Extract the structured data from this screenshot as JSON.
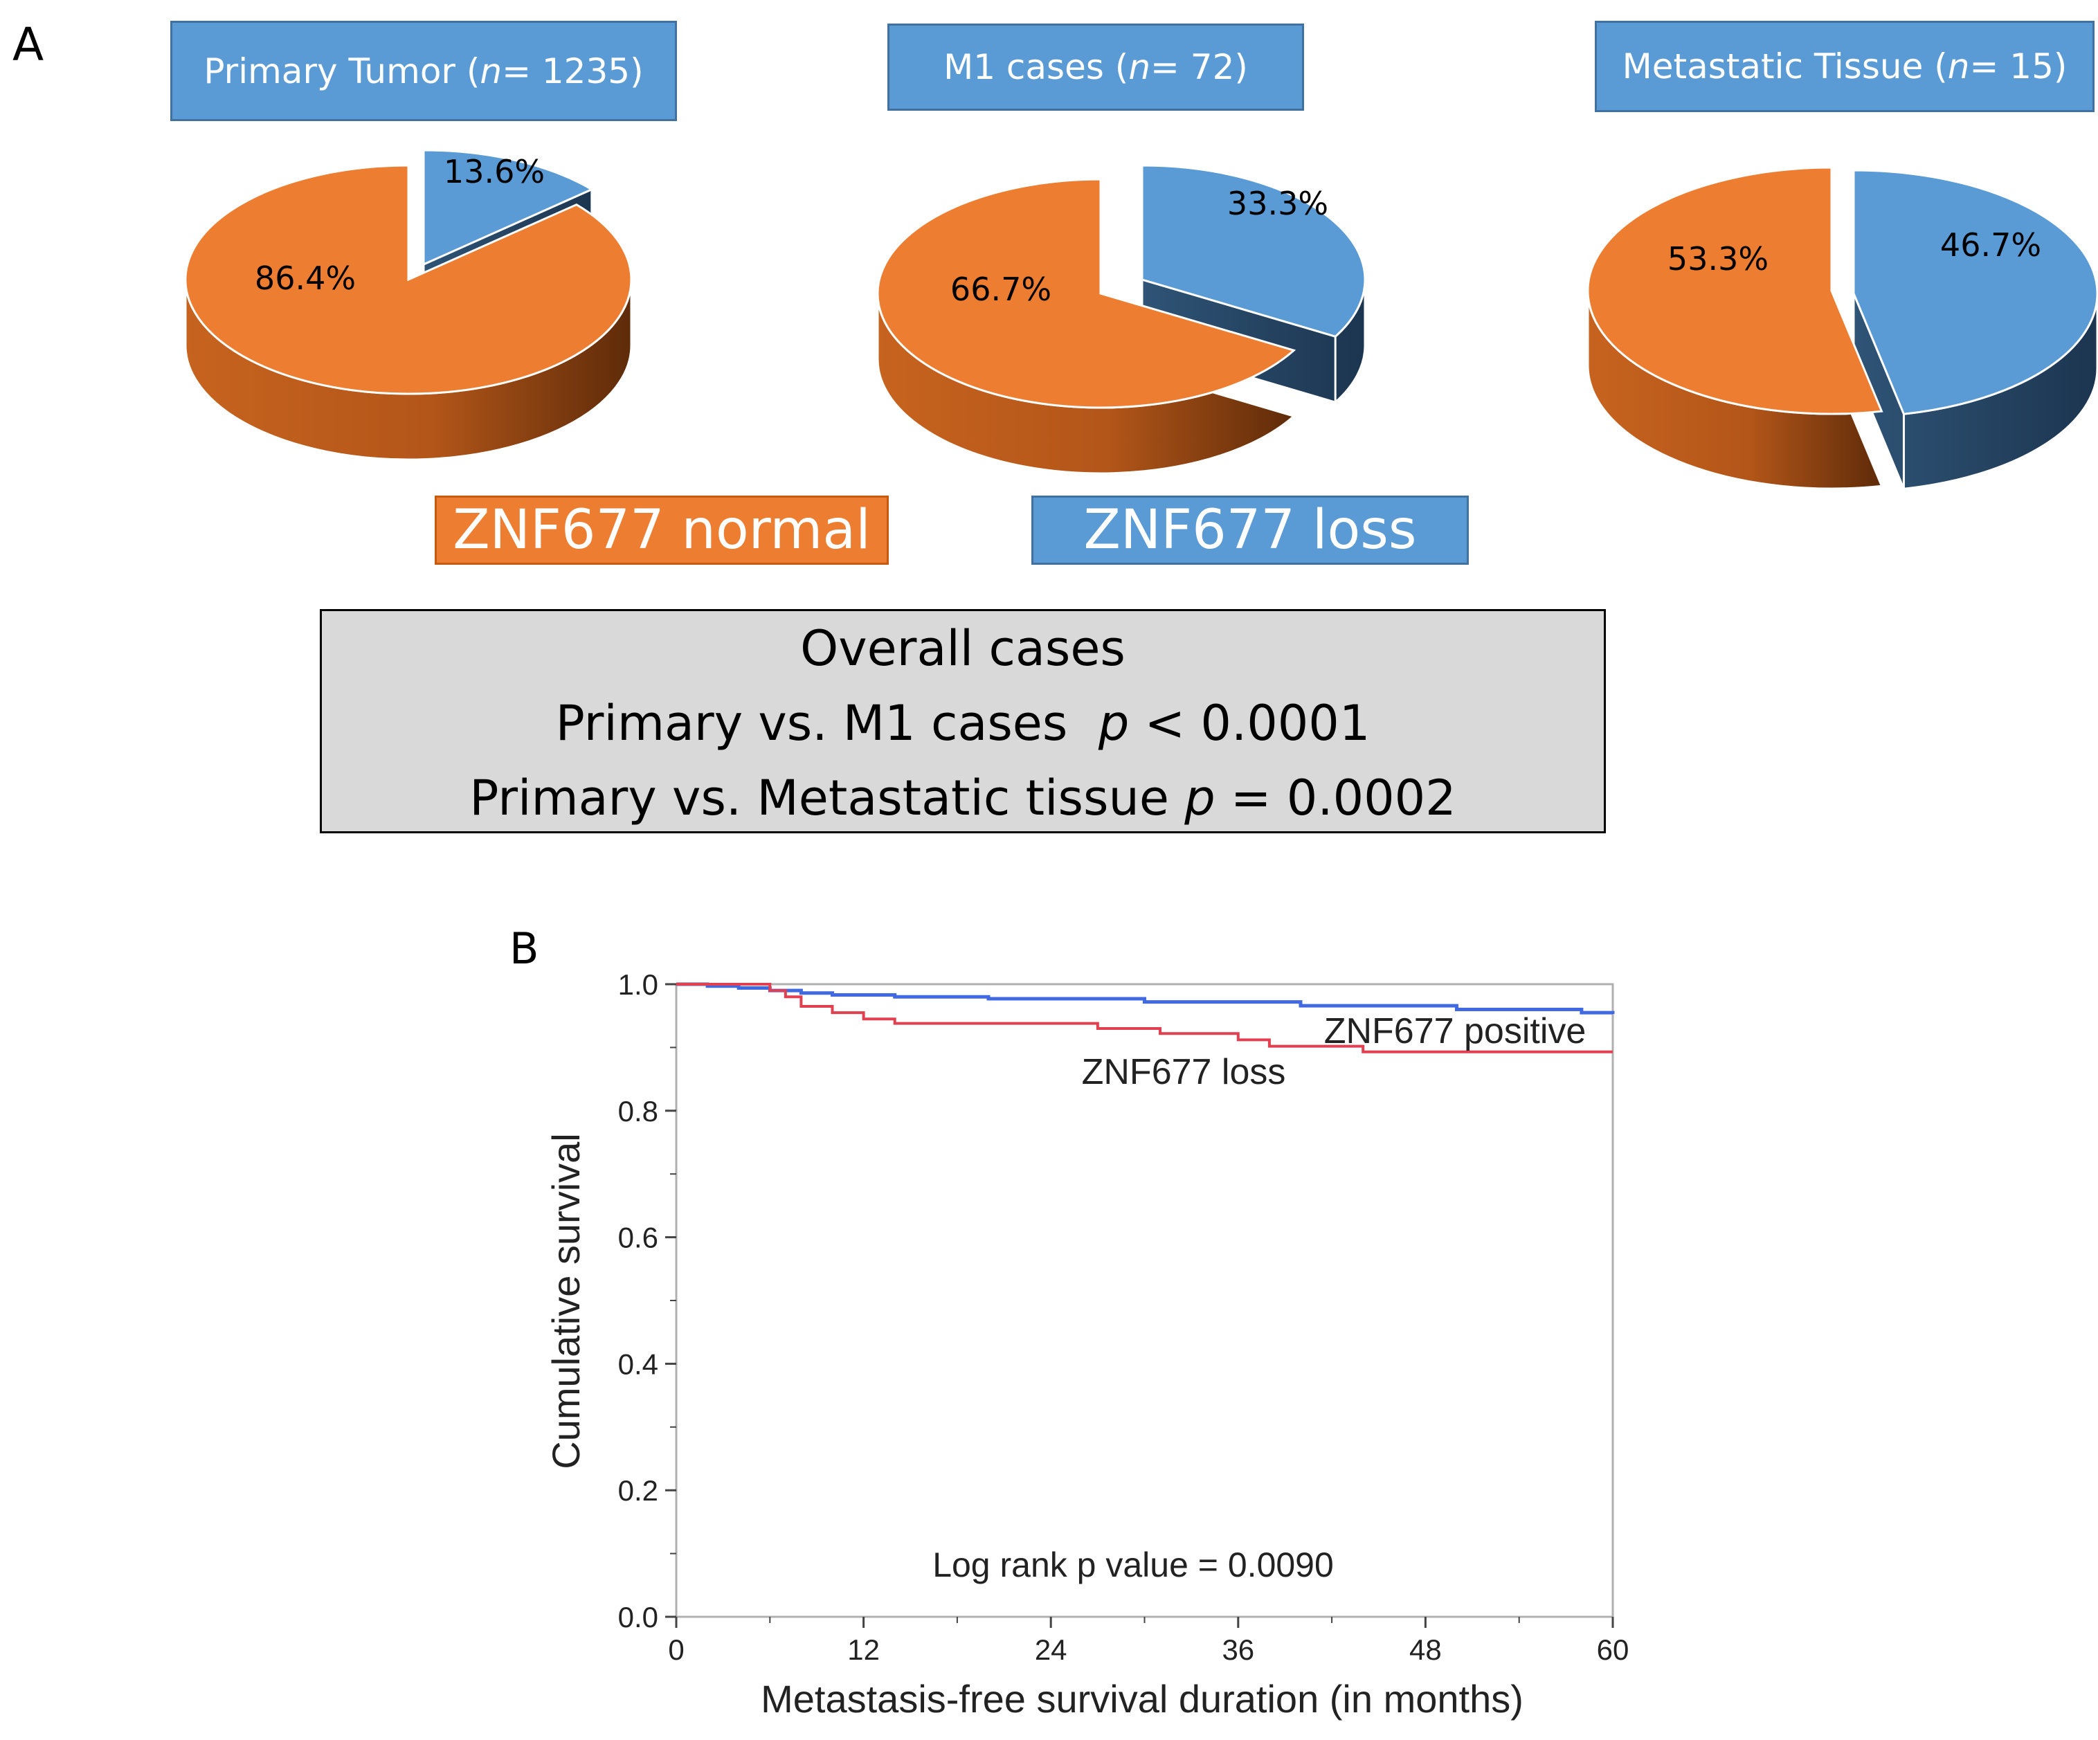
{
  "panel_a_label": "A",
  "panel_b_label": "B",
  "legend": {
    "normal_label": "ZNF677 normal",
    "loss_label": "ZNF677 loss",
    "normal_color": "#ed7d31",
    "loss_color": "#5b9bd5"
  },
  "pies": [
    {
      "title_prefix": "Primary Tumor (",
      "title_n": "n",
      "title_suffix": " = 1235)",
      "normal_label": "86.4%",
      "loss_label": "13.6%",
      "normal": 86.4,
      "loss": 13.6
    },
    {
      "title_prefix": "M1 cases (",
      "title_n": "n",
      "title_suffix": " = 72)",
      "normal_label": "66.7%",
      "loss_label": "33.3%",
      "normal": 66.7,
      "loss": 33.3
    },
    {
      "title_prefix": "Metastatic Tissue (",
      "title_n": "n",
      "title_suffix": " = 15)",
      "normal_label": "53.3%",
      "loss_label": "46.7%",
      "normal": 53.3,
      "loss": 46.7
    }
  ],
  "stats": {
    "line1": "Overall cases",
    "line2_prefix": "Primary vs. M1 cases  ",
    "line2_p": "p",
    "line2_suffix": " < 0.0001",
    "line3_prefix": "Primary vs. Metastatic tissue ",
    "line3_p": "p",
    "line3_suffix": " = 0.0002"
  },
  "chart_data": {
    "type": "line",
    "title": "",
    "xlabel": "Metastasis-free survival duration (in months)",
    "ylabel": "Cumulative survival",
    "xlim": [
      0,
      60
    ],
    "ylim": [
      0.0,
      1.0
    ],
    "xticks": [
      0,
      12,
      24,
      36,
      48,
      60
    ],
    "xtick_labels": [
      "0",
      "12",
      "24",
      "36",
      "48",
      "60"
    ],
    "yticks": [
      0.0,
      0.2,
      0.4,
      0.6,
      0.8,
      1.0
    ],
    "ytick_labels": [
      "0.0",
      "0.2",
      "0.4",
      "0.6",
      "0.8",
      "1.0"
    ],
    "annotation": "Log rank p value = 0.0090",
    "series": [
      {
        "name": "ZNF677 positive",
        "color": "#4169e1",
        "x": [
          0,
          2,
          4,
          6,
          8,
          10,
          14,
          20,
          30,
          40,
          50,
          58,
          60
        ],
        "y": [
          1.0,
          0.997,
          0.994,
          0.99,
          0.986,
          0.983,
          0.98,
          0.977,
          0.972,
          0.966,
          0.96,
          0.955,
          0.953
        ]
      },
      {
        "name": "ZNF677 loss",
        "color": "#e0404f",
        "x": [
          0,
          3,
          6,
          7,
          8,
          10,
          12,
          14,
          27,
          31,
          36,
          38,
          44,
          60
        ],
        "y": [
          1.0,
          1.0,
          0.99,
          0.98,
          0.965,
          0.955,
          0.945,
          0.938,
          0.93,
          0.922,
          0.912,
          0.902,
          0.893,
          0.893
        ]
      }
    ]
  }
}
